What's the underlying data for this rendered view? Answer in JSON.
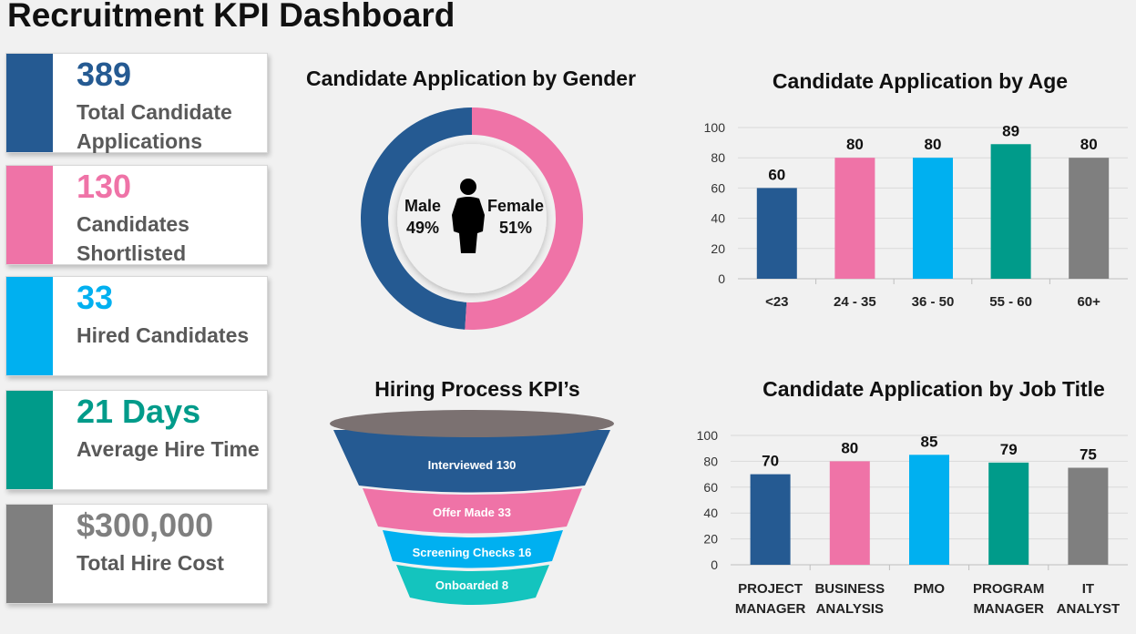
{
  "title": "Recruitment KPI Dashboard",
  "kpis": [
    {
      "value": "389",
      "label": "Total Candidate Applications",
      "color": "#255a92"
    },
    {
      "value": "130",
      "label": "Candidates Shortlisted",
      "color": "#ef73a7"
    },
    {
      "value": "33",
      "label": "Hired Candidates",
      "color": "#00b0f0"
    },
    {
      "value": "21 Days",
      "label": "Average Hire Time",
      "color": "#009b8a"
    },
    {
      "value": "$300,000",
      "label": "Total Hire Cost",
      "color": "#7f7f7f"
    }
  ],
  "gender": {
    "title": "Candidate Application by Gender",
    "male_label": "Male",
    "male_pct": "49%",
    "female_label": "Female",
    "female_pct": "51%",
    "male_value": 49,
    "female_value": 51,
    "male_color": "#255a92",
    "female_color": "#ef73a7",
    "icon": "person-icon"
  },
  "funnel": {
    "title": "Hiring Process KPI’s",
    "stages": [
      {
        "label": "Interviewed 130",
        "color": "#255a92"
      },
      {
        "label": "Offer Made 33",
        "color": "#ef73a7"
      },
      {
        "label": "Screening Checks 16",
        "color": "#00b0f0"
      },
      {
        "label": "Onboarded 8",
        "color": "#14c4be"
      }
    ],
    "rim_color": "#7b7171"
  },
  "chart_data": [
    {
      "type": "bar",
      "title": "Candidate Application by Age",
      "categories": [
        "<23",
        "24 - 35",
        "36 - 50",
        "55 - 60",
        "60+"
      ],
      "values": [
        60,
        80,
        80,
        89,
        80
      ],
      "colors": [
        "#255a92",
        "#ef73a7",
        "#00b0f0",
        "#009b8a",
        "#7f7f7f"
      ],
      "yticks": [
        "0",
        "20",
        "40",
        "60",
        "80",
        "100"
      ],
      "ylim": [
        0,
        100
      ],
      "grid": true,
      "xlabel": "",
      "ylabel": ""
    },
    {
      "type": "bar",
      "title": "Candidate Application by Job Title",
      "categories": [
        "PROJECT MANAGER",
        "BUSINESS ANALYSIS",
        "PMO",
        "PROGRAM MANAGER",
        "IT ANALYST"
      ],
      "values": [
        70,
        80,
        85,
        79,
        75
      ],
      "colors": [
        "#255a92",
        "#ef73a7",
        "#00b0f0",
        "#009b8a",
        "#7f7f7f"
      ],
      "yticks": [
        "0",
        "20",
        "40",
        "60",
        "80",
        "100"
      ],
      "ylim": [
        0,
        100
      ],
      "grid": true,
      "xlabel": "",
      "ylabel": ""
    }
  ]
}
